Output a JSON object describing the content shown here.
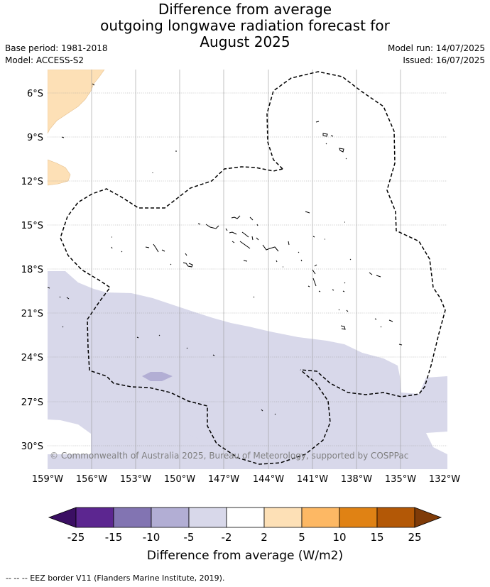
{
  "header": {
    "title_line1": "Difference from average",
    "title_line2": "outgoing longwave radiation forecast for",
    "title_line3": "August 2025",
    "base_period": "Base period: 1981-2018",
    "model": "Model: ACCESS-S2",
    "model_run": "Model run: 14/07/2025",
    "issued": "Issued: 16/07/2025"
  },
  "map": {
    "lat_labels": [
      "6°S",
      "9°S",
      "12°S",
      "15°S",
      "18°S",
      "21°S",
      "24°S",
      "27°S",
      "30°S"
    ],
    "lon_labels": [
      "159°W",
      "156°W",
      "153°W",
      "150°W",
      "147°W",
      "144°W",
      "141°W",
      "138°W",
      "135°W",
      "132°W"
    ],
    "copyright": "© Commonwealth of Australia 2025, Bureau of Meteorology, supported by COSPPac",
    "colors": {
      "light_purple": "#d8d8ea",
      "mid_purple": "#b2aed4",
      "light_orange": "#fde0b6",
      "border": "#000000"
    }
  },
  "colorbar": {
    "title": "Difference from average (W/m2)",
    "labels": [
      "-25",
      "-15",
      "-10",
      "-5",
      "-2",
      "2",
      "5",
      "10",
      "15",
      "25"
    ],
    "colors": [
      "#3b0f63",
      "#5c2690",
      "#8274b2",
      "#b2aed4",
      "#d8d8ea",
      "#ffffff",
      "#fde0b6",
      "#fdb864",
      "#e08214",
      "#b35806",
      "#7f3b08"
    ]
  },
  "footnote": "--  --  -- EEZ border V11 (Flanders Marine Institute, 2019)."
}
